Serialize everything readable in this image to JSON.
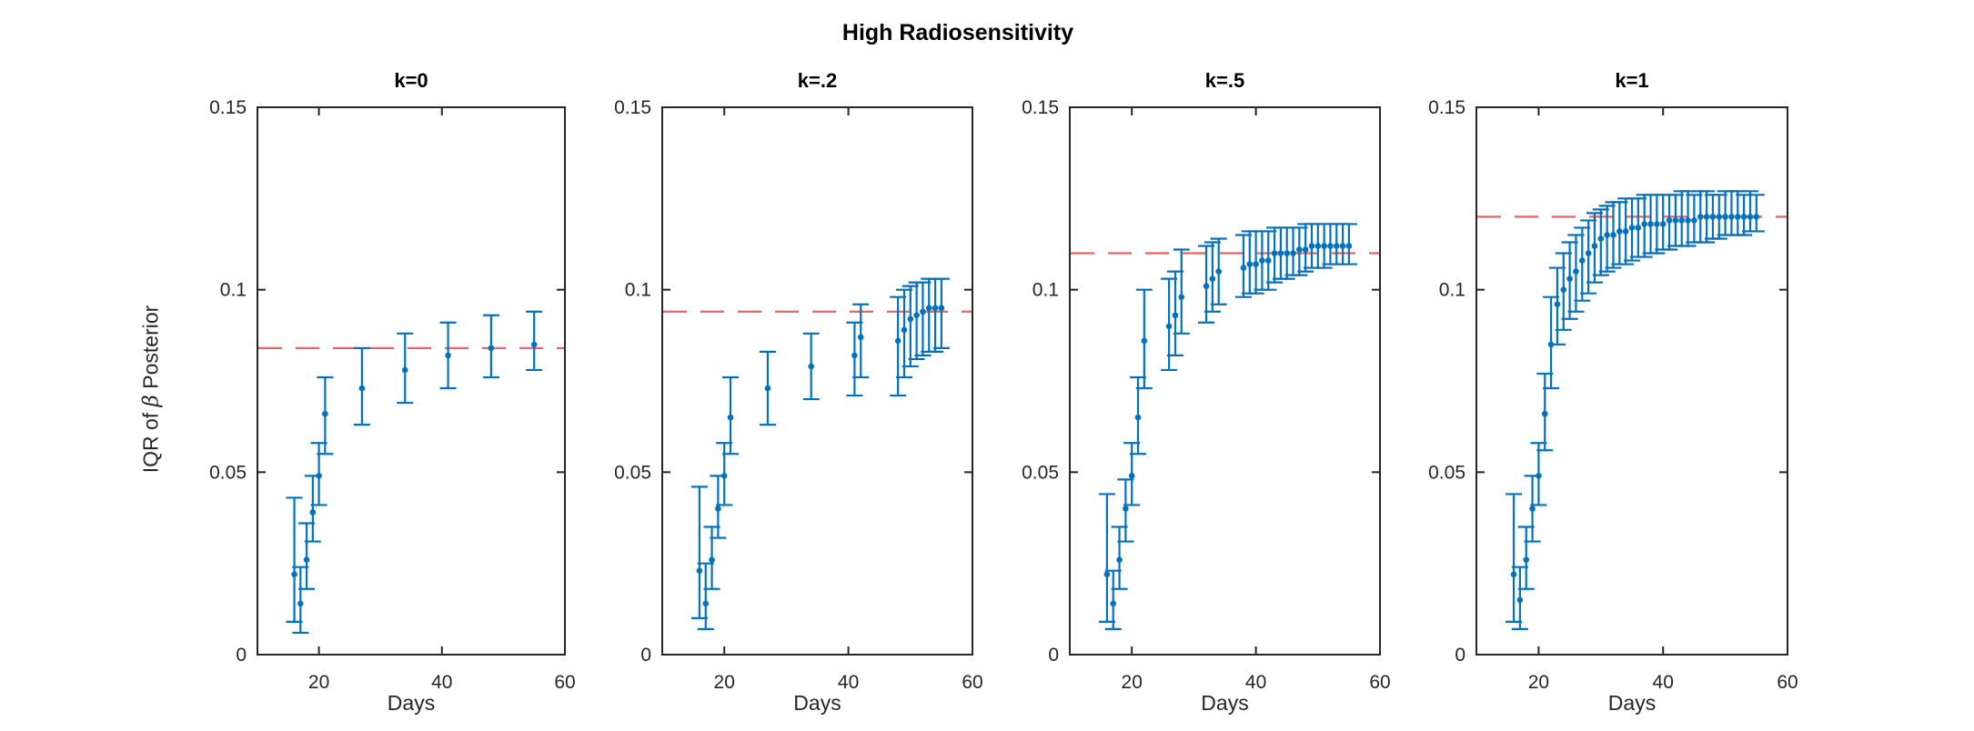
{
  "figure": {
    "title": "High Radiosensitivity"
  },
  "style": {
    "marker_color": "#0072BD",
    "errorbar_color": "#0072BD",
    "refline_color": "#EF4444",
    "axis_color": "#262626",
    "background": "#FFFFFF"
  },
  "chart_data": [
    {
      "type": "errorbar",
      "title": "k=0",
      "xlabel": "Days",
      "ylabel": "IQR of β Posterior",
      "ylabel_parts": [
        "IQR of ",
        "β",
        " Posterior"
      ],
      "xlim": [
        10,
        60
      ],
      "ylim": [
        0,
        0.15
      ],
      "xticks": [
        20,
        40,
        60
      ],
      "yticks": [
        0,
        0.05,
        0.1,
        0.15
      ],
      "ytick_labels": [
        "0",
        "0.05",
        "0.1",
        "0.15"
      ],
      "grid": false,
      "legend": null,
      "refline_y": 0.084,
      "x_days": [
        16,
        17,
        18,
        19,
        20,
        21,
        27,
        34,
        41,
        48,
        55
      ],
      "y_mid": [
        0.022,
        0.014,
        0.026,
        0.039,
        0.049,
        0.066,
        0.073,
        0.078,
        0.082,
        0.084,
        0.085
      ],
      "y_lower": [
        0.009,
        0.006,
        0.018,
        0.031,
        0.041,
        0.055,
        0.063,
        0.069,
        0.073,
        0.076,
        0.078
      ],
      "y_upper": [
        0.043,
        0.024,
        0.036,
        0.049,
        0.058,
        0.076,
        0.084,
        0.088,
        0.091,
        0.093,
        0.094
      ]
    },
    {
      "type": "errorbar",
      "title": "k=.2",
      "xlabel": "Days",
      "xlim": [
        10,
        60
      ],
      "ylim": [
        0,
        0.15
      ],
      "xticks": [
        20,
        40,
        60
      ],
      "yticks": [
        0,
        0.05,
        0.1,
        0.15
      ],
      "ytick_labels": [
        "0",
        "0.05",
        "0.1",
        "0.15"
      ],
      "grid": false,
      "legend": null,
      "refline_y": 0.094,
      "x_days": [
        16,
        17,
        18,
        19,
        20,
        21,
        27,
        34,
        41,
        42,
        48,
        49,
        50,
        51,
        52,
        53,
        54,
        55
      ],
      "y_mid": [
        0.023,
        0.014,
        0.026,
        0.04,
        0.049,
        0.065,
        0.073,
        0.079,
        0.082,
        0.087,
        0.086,
        0.089,
        0.092,
        0.093,
        0.094,
        0.095,
        0.095,
        0.095
      ],
      "y_lower": [
        0.01,
        0.007,
        0.018,
        0.032,
        0.041,
        0.055,
        0.063,
        0.07,
        0.071,
        0.076,
        0.071,
        0.076,
        0.079,
        0.081,
        0.082,
        0.083,
        0.083,
        0.084
      ],
      "y_upper": [
        0.046,
        0.025,
        0.035,
        0.049,
        0.058,
        0.076,
        0.083,
        0.088,
        0.091,
        0.096,
        0.098,
        0.1,
        0.101,
        0.102,
        0.102,
        0.103,
        0.103,
        0.103
      ]
    },
    {
      "type": "errorbar",
      "title": "k=.5",
      "xlabel": "Days",
      "xlim": [
        10,
        60
      ],
      "ylim": [
        0,
        0.15
      ],
      "xticks": [
        20,
        40,
        60
      ],
      "yticks": [
        0,
        0.05,
        0.1,
        0.15
      ],
      "ytick_labels": [
        "0",
        "0.05",
        "0.1",
        "0.15"
      ],
      "grid": false,
      "legend": null,
      "refline_y": 0.11,
      "x_days": [
        16,
        17,
        18,
        19,
        20,
        21,
        22,
        26,
        27,
        28,
        32,
        33,
        34,
        38,
        39,
        40,
        41,
        42,
        43,
        44,
        45,
        46,
        47,
        48,
        49,
        50,
        51,
        52,
        53,
        54,
        55
      ],
      "y_mid": [
        0.022,
        0.014,
        0.026,
        0.04,
        0.049,
        0.065,
        0.086,
        0.09,
        0.093,
        0.098,
        0.101,
        0.103,
        0.105,
        0.106,
        0.107,
        0.107,
        0.108,
        0.108,
        0.11,
        0.11,
        0.11,
        0.11,
        0.111,
        0.111,
        0.112,
        0.112,
        0.112,
        0.112,
        0.112,
        0.112,
        0.112
      ],
      "y_lower": [
        0.009,
        0.007,
        0.018,
        0.031,
        0.041,
        0.055,
        0.073,
        0.078,
        0.082,
        0.088,
        0.091,
        0.094,
        0.096,
        0.098,
        0.099,
        0.099,
        0.1,
        0.1,
        0.102,
        0.103,
        0.103,
        0.104,
        0.104,
        0.105,
        0.106,
        0.106,
        0.106,
        0.107,
        0.107,
        0.107,
        0.107
      ],
      "y_upper": [
        0.044,
        0.023,
        0.035,
        0.048,
        0.058,
        0.076,
        0.1,
        0.103,
        0.105,
        0.111,
        0.112,
        0.113,
        0.114,
        0.115,
        0.116,
        0.116,
        0.116,
        0.116,
        0.117,
        0.117,
        0.117,
        0.117,
        0.117,
        0.118,
        0.118,
        0.118,
        0.118,
        0.118,
        0.118,
        0.118,
        0.118
      ]
    },
    {
      "type": "errorbar",
      "title": "k=1",
      "xlabel": "Days",
      "xlim": [
        10,
        60
      ],
      "ylim": [
        0,
        0.15
      ],
      "xticks": [
        20,
        40,
        60
      ],
      "yticks": [
        0,
        0.05,
        0.1,
        0.15
      ],
      "ytick_labels": [
        "0",
        "0.05",
        "0.1",
        "0.15"
      ],
      "grid": false,
      "legend": null,
      "refline_y": 0.12,
      "x_days": [
        16,
        17,
        18,
        19,
        20,
        21,
        22,
        23,
        24,
        25,
        26,
        27,
        28,
        29,
        30,
        31,
        32,
        33,
        34,
        35,
        36,
        37,
        38,
        39,
        40,
        41,
        42,
        43,
        44,
        45,
        46,
        47,
        48,
        49,
        50,
        51,
        52,
        53,
        54,
        55
      ],
      "y_mid": [
        0.022,
        0.015,
        0.026,
        0.04,
        0.049,
        0.066,
        0.085,
        0.096,
        0.1,
        0.103,
        0.105,
        0.108,
        0.11,
        0.112,
        0.114,
        0.115,
        0.115,
        0.116,
        0.116,
        0.117,
        0.117,
        0.118,
        0.118,
        0.118,
        0.118,
        0.119,
        0.119,
        0.119,
        0.119,
        0.119,
        0.12,
        0.12,
        0.12,
        0.12,
        0.12,
        0.12,
        0.12,
        0.12,
        0.12,
        0.12
      ],
      "y_lower": [
        0.009,
        0.007,
        0.018,
        0.031,
        0.041,
        0.056,
        0.073,
        0.085,
        0.089,
        0.092,
        0.094,
        0.097,
        0.099,
        0.102,
        0.104,
        0.105,
        0.106,
        0.107,
        0.107,
        0.108,
        0.109,
        0.109,
        0.11,
        0.11,
        0.111,
        0.111,
        0.112,
        0.112,
        0.112,
        0.113,
        0.113,
        0.113,
        0.114,
        0.114,
        0.115,
        0.115,
        0.115,
        0.115,
        0.116,
        0.116
      ],
      "y_upper": [
        0.044,
        0.024,
        0.035,
        0.049,
        0.058,
        0.077,
        0.098,
        0.106,
        0.11,
        0.113,
        0.115,
        0.117,
        0.119,
        0.121,
        0.122,
        0.123,
        0.124,
        0.124,
        0.125,
        0.125,
        0.125,
        0.126,
        0.126,
        0.126,
        0.126,
        0.126,
        0.126,
        0.127,
        0.127,
        0.126,
        0.127,
        0.127,
        0.126,
        0.126,
        0.127,
        0.127,
        0.127,
        0.126,
        0.127,
        0.126
      ]
    }
  ]
}
